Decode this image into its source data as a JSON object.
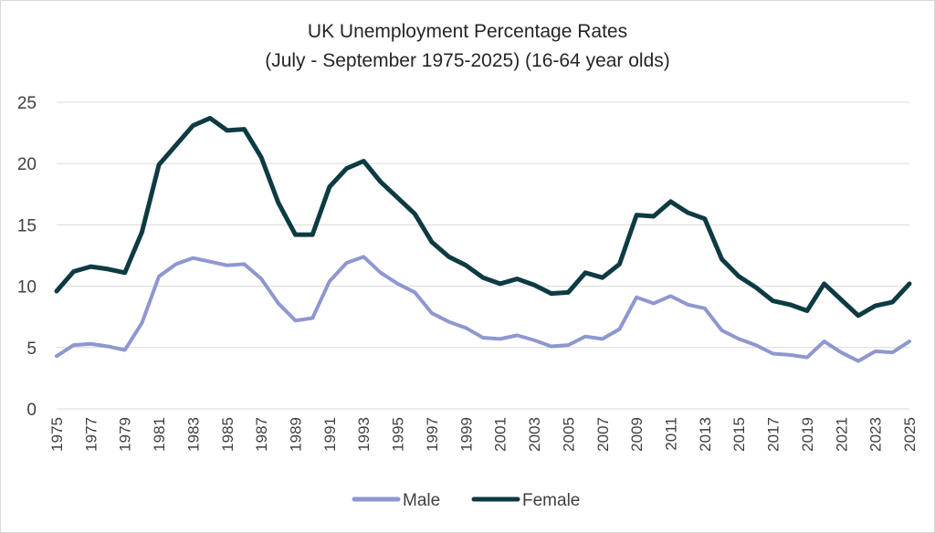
{
  "chart_data": {
    "type": "line",
    "title": "UK Unemployment Percentage Rates",
    "subtitle": "(July - September 1975-2025) (16-64 year olds)",
    "xlabel": "",
    "ylabel": "",
    "ylim": [
      0,
      25
    ],
    "yticks": [
      0,
      5,
      10,
      15,
      20,
      25
    ],
    "grid": true,
    "legend_position": "bottom",
    "x": [
      1975,
      1976,
      1977,
      1978,
      1979,
      1980,
      1981,
      1982,
      1983,
      1984,
      1985,
      1986,
      1987,
      1988,
      1989,
      1990,
      1991,
      1992,
      1993,
      1994,
      1995,
      1996,
      1997,
      1998,
      1999,
      2000,
      2001,
      2002,
      2003,
      2004,
      2005,
      2006,
      2007,
      2008,
      2009,
      2010,
      2011,
      2012,
      2013,
      2014,
      2015,
      2016,
      2017,
      2018,
      2019,
      2020,
      2021,
      2022,
      2023,
      2024,
      2025
    ],
    "xticks": [
      "1975",
      "1977",
      "1979",
      "1981",
      "1983",
      "1985",
      "1987",
      "1989",
      "1991",
      "1993",
      "1995",
      "1997",
      "1999",
      "2001",
      "2003",
      "2005",
      "2007",
      "2009",
      "2011",
      "2013",
      "2015",
      "2017",
      "2019",
      "2021",
      "2023",
      "2025"
    ],
    "series": [
      {
        "name": "Male",
        "color": "#8f97d0",
        "values": [
          4.3,
          5.2,
          5.3,
          5.1,
          4.8,
          7.0,
          10.8,
          11.8,
          12.3,
          12.0,
          11.7,
          11.8,
          10.6,
          8.6,
          7.2,
          7.4,
          10.4,
          11.9,
          12.4,
          11.1,
          10.2,
          9.5,
          7.8,
          7.1,
          6.6,
          5.8,
          5.7,
          6.0,
          5.6,
          5.1,
          5.2,
          5.9,
          5.7,
          6.5,
          9.1,
          8.6,
          9.2,
          8.5,
          8.2,
          6.4,
          5.7,
          5.2,
          4.5,
          4.4,
          4.2,
          5.5,
          4.6,
          3.9,
          4.7,
          4.6,
          5.5
        ]
      },
      {
        "name": "Female",
        "color": "#0e3b43",
        "values": [
          9.6,
          11.2,
          11.6,
          11.4,
          11.1,
          14.4,
          19.9,
          21.5,
          23.1,
          23.7,
          22.7,
          22.8,
          20.5,
          16.8,
          14.2,
          14.2,
          18.1,
          19.6,
          20.2,
          18.5,
          17.2,
          15.9,
          13.6,
          12.4,
          11.7,
          10.7,
          10.2,
          10.6,
          10.1,
          9.4,
          9.5,
          11.1,
          10.7,
          11.8,
          15.8,
          15.7,
          16.9,
          16.0,
          15.5,
          12.2,
          10.8,
          9.9,
          8.8,
          8.5,
          8.0,
          10.2,
          8.9,
          7.6,
          8.4,
          8.7,
          10.2
        ]
      }
    ]
  }
}
